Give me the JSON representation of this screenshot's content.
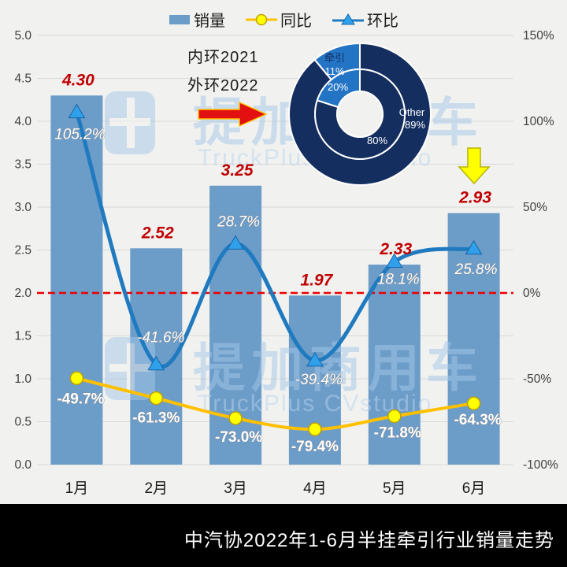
{
  "background_color": "#F1F1EF",
  "legend": {
    "items": [
      {
        "label": "销量",
        "type": "bar",
        "color": "#6C9CC8"
      },
      {
        "label": "同比",
        "type": "line-circle",
        "line_color": "#FFC000",
        "marker_color": "#FFFF00"
      },
      {
        "label": "环比",
        "type": "line-triangle",
        "line_color": "#1F7AC0",
        "marker_color": "#2FA0E9"
      }
    ]
  },
  "annotations": {
    "inner_ring_note": "内环2021",
    "outer_ring_note": "外环2022"
  },
  "watermark": {
    "cn": "提加商用车",
    "en": "TruckPlus CVstudio",
    "color": "#A5C8E8"
  },
  "footer": {
    "title": "中汽协2022年1-6月半挂牵引行业销量走势",
    "bg": "#000000",
    "text_color": "#FFFFFF"
  },
  "chart_data": {
    "type": "combo",
    "categories": [
      "1月",
      "2月",
      "3月",
      "4月",
      "5月",
      "6月"
    ],
    "series": [
      {
        "name": "销量",
        "type": "bar",
        "axis": "left",
        "color": "#6C9CC8",
        "values": [
          4.3,
          2.52,
          3.25,
          1.97,
          2.33,
          2.93
        ],
        "labels": [
          "4.30",
          "2.52",
          "3.25",
          "1.97",
          "2.33",
          "2.93"
        ],
        "label_color": "#C00000"
      },
      {
        "name": "同比",
        "type": "line",
        "axis": "right",
        "color": "#FFC000",
        "marker": "circle",
        "marker_fill": "#FFFF00",
        "marker_stroke": "#BFA000",
        "values": [
          -49.7,
          -61.3,
          -73.0,
          -79.4,
          -71.8,
          -64.3
        ],
        "labels": [
          "-49.7%",
          "-61.3%",
          "-73.0%",
          "-79.4%",
          "-71.8%",
          "-64.3%"
        ]
      },
      {
        "name": "环比",
        "type": "line",
        "axis": "right",
        "color": "#1F7AC0",
        "marker": "triangle",
        "marker_fill": "#2FA0E9",
        "marker_stroke": "#1565A8",
        "values": [
          105.2,
          -41.6,
          28.7,
          -39.4,
          18.1,
          25.8
        ],
        "labels": [
          "105.2%",
          "-41.6%",
          "28.7%",
          "-39.4%",
          "18.1%",
          "25.8%"
        ]
      }
    ],
    "left_axis": {
      "min": 0,
      "max": 5,
      "step": 0.5,
      "tick_labels": [
        "5.0",
        "4.5",
        "4.0",
        "3.5",
        "3.0",
        "2.5",
        "2.0",
        "1.5",
        "1.0",
        "0.5",
        "0.0"
      ]
    },
    "right_axis": {
      "min": -100,
      "max": 150,
      "step": 50,
      "tick_labels": [
        "150%",
        "100%",
        "50%",
        "0%",
        "-50%",
        "-100%"
      ]
    },
    "reference_line": {
      "axis": "right",
      "value": 0,
      "color": "#EE0000",
      "style": "dashed"
    },
    "grid": true,
    "donut": {
      "note_inner": "内环2021",
      "note_outer": "外环2022",
      "labels": {
        "slice_name": "牵引",
        "other_name": "Other"
      },
      "rings": [
        {
          "name": "inner",
          "year": "2021",
          "slices": [
            {
              "name": "Other",
              "pct": 80,
              "color": "#132E5F",
              "label": "80%"
            },
            {
              "name": "牵引",
              "pct": 20,
              "color": "#2374C5",
              "label": "20%"
            }
          ]
        },
        {
          "name": "outer",
          "year": "2022",
          "slices": [
            {
              "name": "Other",
              "pct": 89,
              "color": "#132E5F",
              "label": "89%"
            },
            {
              "name": "牵引",
              "pct": 11,
              "color": "#2374C5",
              "label": "11%"
            }
          ]
        }
      ]
    }
  }
}
